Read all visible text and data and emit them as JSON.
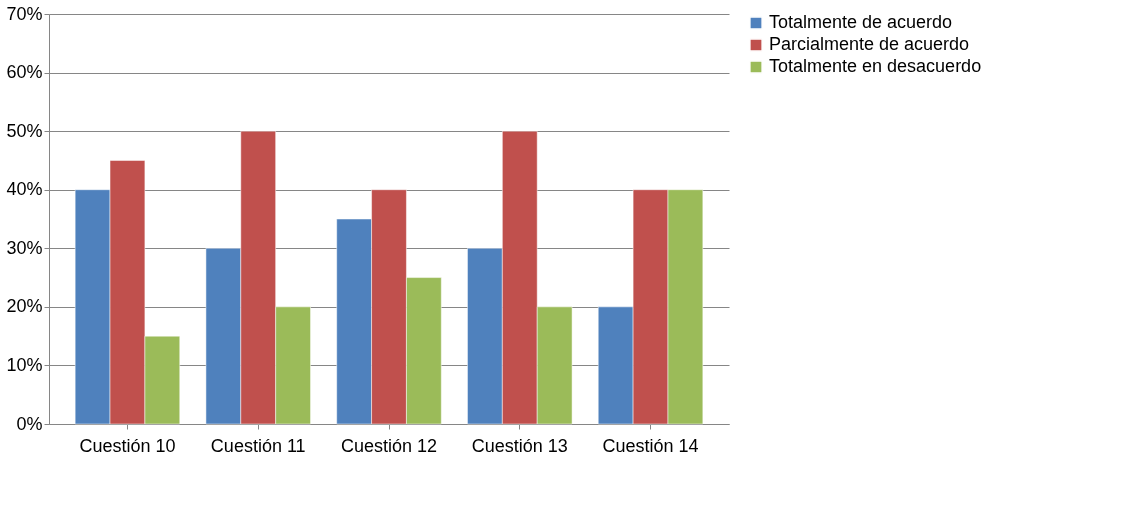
{
  "chart_data": {
    "type": "bar",
    "categories": [
      "Cuestión 10",
      "Cuestión 11",
      "Cuestión 12",
      "Cuestión 13",
      "Cuestión 14"
    ],
    "series": [
      {
        "name": "Totalmente de acuerdo",
        "color": "#4f81bd",
        "values": [
          40,
          30,
          35,
          30,
          20
        ]
      },
      {
        "name": "Parcialmente de acuerdo",
        "color": "#c0504d",
        "values": [
          45,
          50,
          40,
          50,
          40
        ]
      },
      {
        "name": "Totalmente en desacuerdo",
        "color": "#9bbb59",
        "values": [
          15,
          20,
          25,
          20,
          40
        ]
      }
    ],
    "ylim": [
      0,
      70
    ],
    "yticks": [
      {
        "value": 0,
        "label": "0%"
      },
      {
        "value": 10,
        "label": "10%"
      },
      {
        "value": 20,
        "label": "20%"
      },
      {
        "value": 30,
        "label": "30%"
      },
      {
        "value": 40,
        "label": "40%"
      },
      {
        "value": 50,
        "label": "50%"
      },
      {
        "value": 60,
        "label": "60%"
      },
      {
        "value": 70,
        "label": "70%"
      }
    ],
    "grid": "y",
    "legend": "right"
  }
}
